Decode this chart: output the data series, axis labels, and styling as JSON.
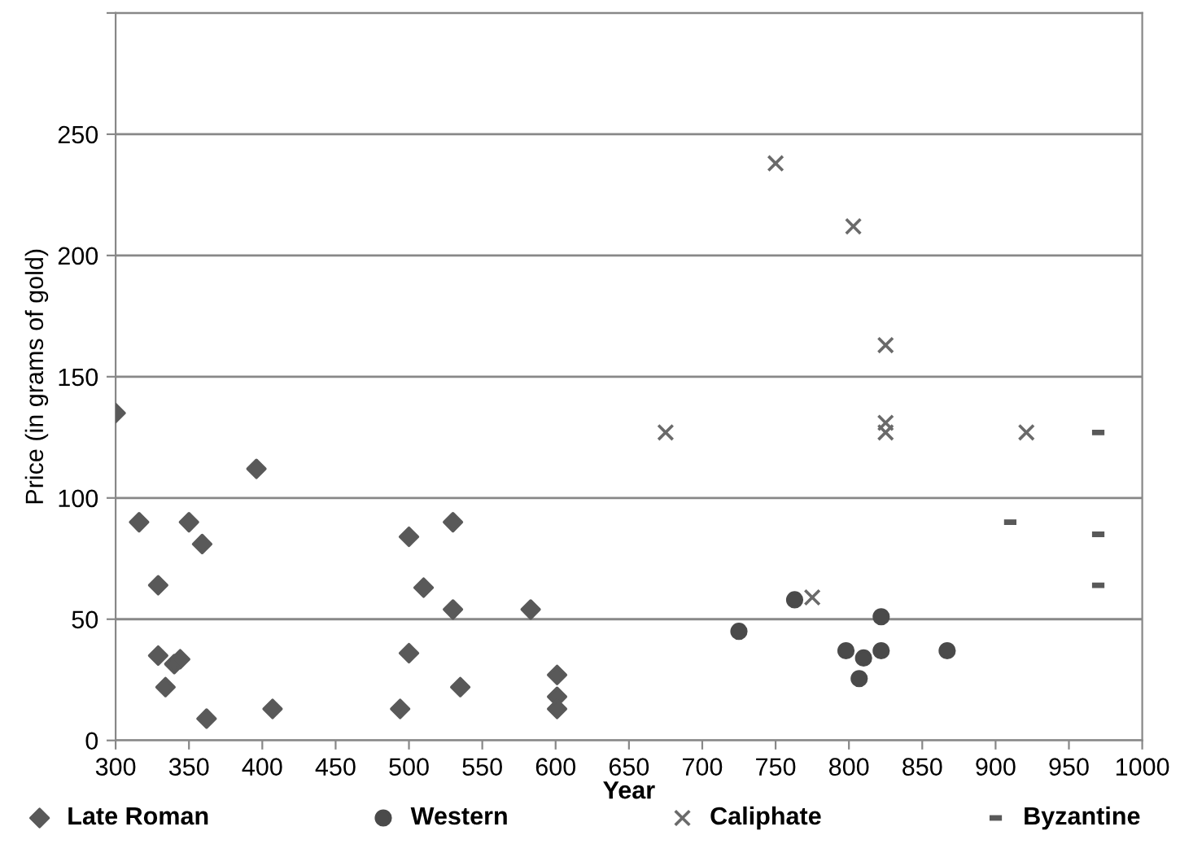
{
  "chart_data": {
    "type": "scatter",
    "xlabel": "Year",
    "ylabel": "Price (in grams of gold)",
    "xlim": [
      300,
      1000
    ],
    "xticks": [
      300,
      350,
      400,
      450,
      500,
      550,
      600,
      650,
      700,
      750,
      800,
      850,
      900,
      950,
      1000
    ],
    "ylim": [
      0,
      300
    ],
    "yticks": [
      0,
      50,
      100,
      150,
      200,
      250,
      {
        "value": 300,
        "label": null
      }
    ],
    "grid": "y",
    "legend": "bottom",
    "series": [
      {
        "name": "Late Roman",
        "color": "#595959",
        "marker": "diamond",
        "x": [
          300,
          316,
          329,
          329,
          334,
          340,
          344,
          350,
          359,
          362,
          396,
          407,
          494,
          500,
          500,
          510,
          530,
          530,
          535,
          583,
          601,
          601,
          601
        ],
        "values": [
          135,
          90,
          64,
          35,
          22,
          31.5,
          33.5,
          90,
          81,
          9,
          112,
          13,
          13,
          84,
          36,
          63,
          90,
          54,
          22,
          54,
          27,
          18,
          13
        ]
      },
      {
        "name": "Western",
        "color": "#4a4a4a",
        "marker": "circle",
        "x": [
          725,
          763,
          798,
          807,
          810,
          822,
          822,
          867
        ],
        "values": [
          45,
          58,
          37,
          25.5,
          34,
          51,
          37,
          37
        ]
      },
      {
        "name": "Caliphate",
        "color": "#6a6a6a",
        "marker": "cross",
        "x": [
          675,
          750,
          775,
          803,
          825,
          825,
          825,
          921
        ],
        "values": [
          127,
          238,
          59,
          212,
          163,
          131,
          127,
          127
        ]
      },
      {
        "name": "Byzantine",
        "color": "#595959",
        "marker": "square",
        "x": [
          910,
          970,
          970,
          970
        ],
        "values": [
          90,
          127,
          85,
          64
        ]
      }
    ]
  }
}
